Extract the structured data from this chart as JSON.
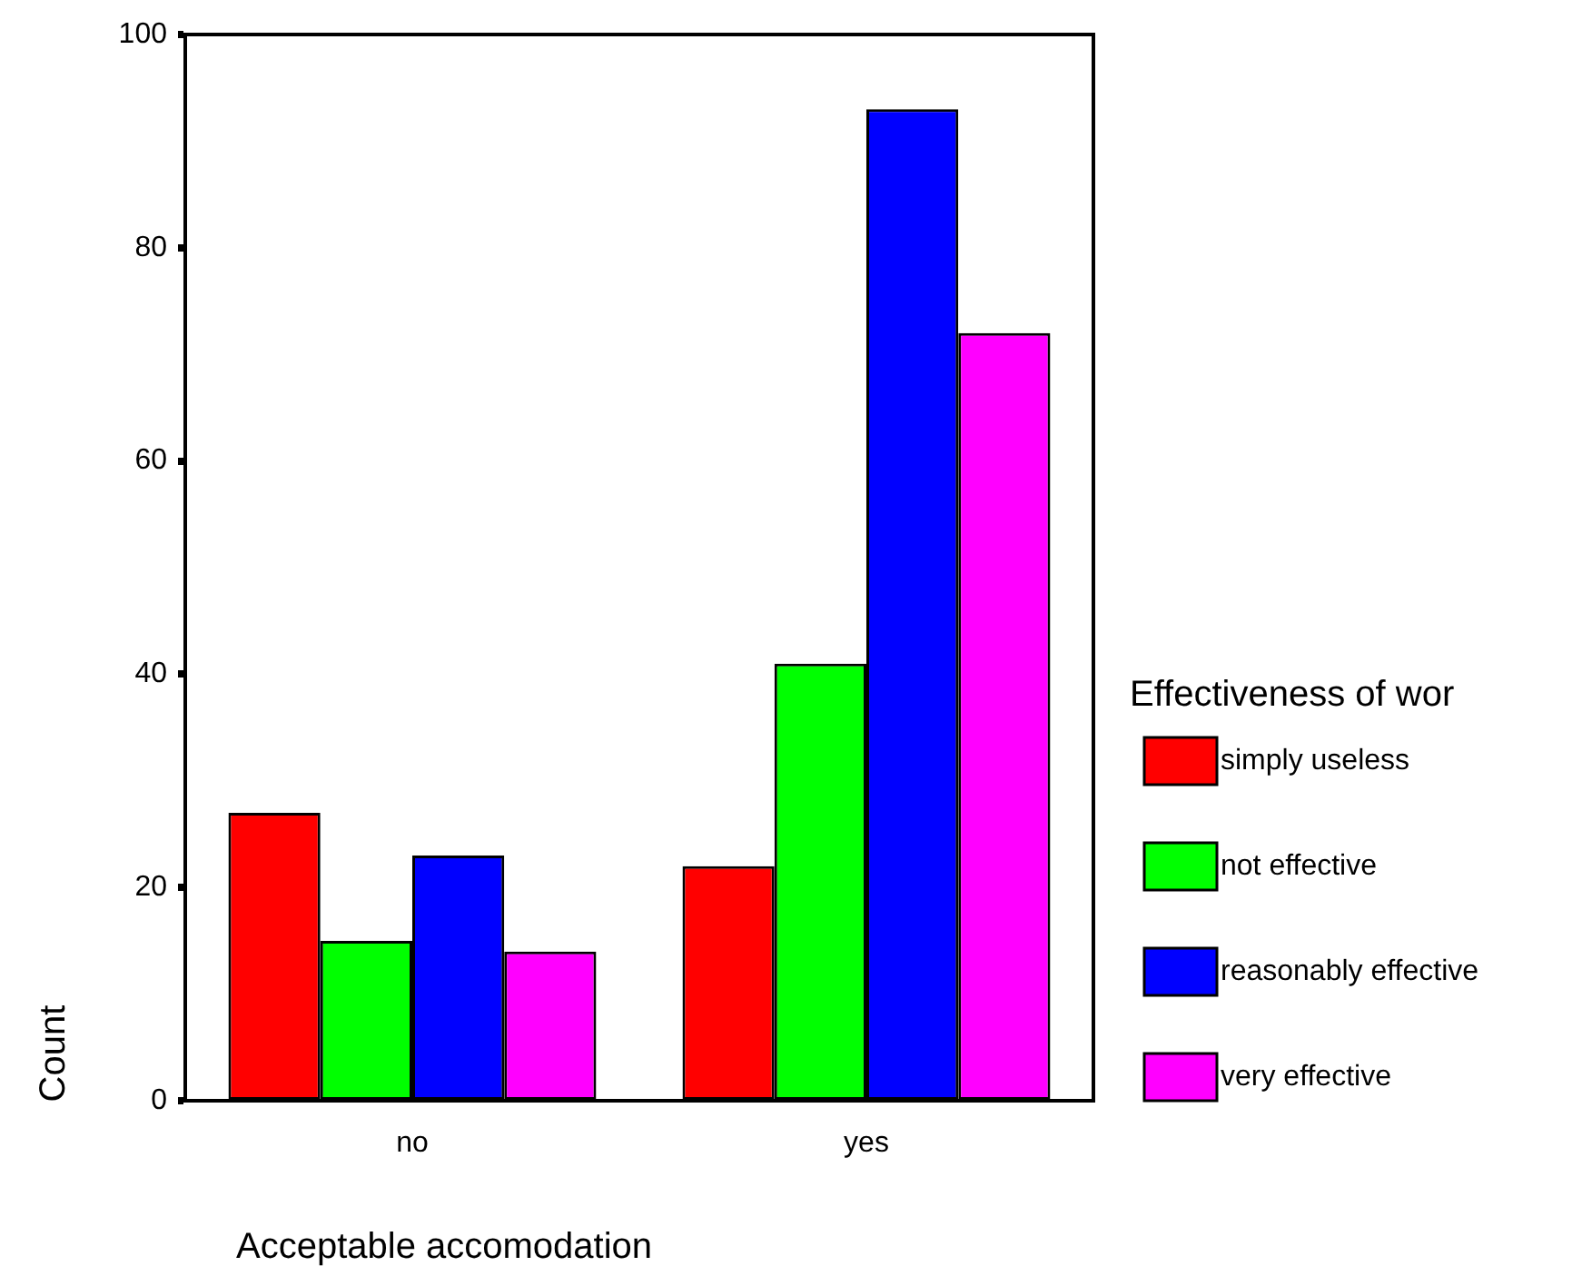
{
  "chart_data": {
    "type": "bar",
    "xlabel": "Acceptable accomodation",
    "ylabel": "Count",
    "legend_title": "Effectiveness of wor",
    "categories": [
      "no",
      "yes"
    ],
    "series": [
      {
        "name": "simply useless",
        "color": "#ff0000",
        "values": [
          27,
          22
        ]
      },
      {
        "name": "not effective",
        "color": "#00ff00",
        "values": [
          15,
          41
        ]
      },
      {
        "name": "reasonably effective",
        "color": "#0000ff",
        "values": [
          23,
          93
        ]
      },
      {
        "name": "very effective",
        "color": "#ff00ff",
        "values": [
          14,
          72
        ]
      }
    ],
    "ylim": [
      0,
      100
    ],
    "yticks": [
      0,
      20,
      40,
      60,
      80,
      100
    ],
    "grid": false,
    "legend": "right"
  }
}
